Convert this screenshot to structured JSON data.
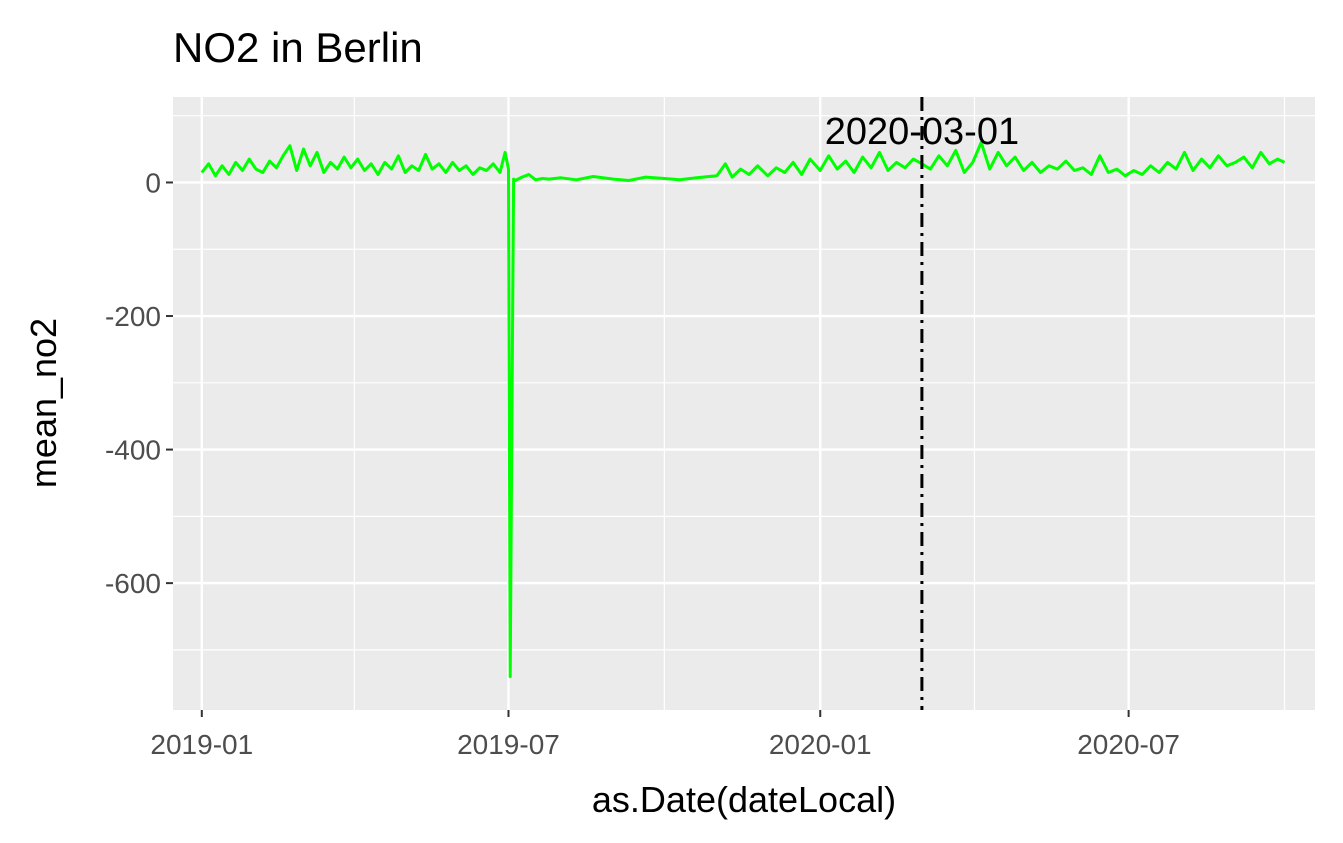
{
  "chart_data": {
    "type": "line",
    "title": "NO2 in Berlin",
    "xlabel": "as.Date(dateLocal)",
    "ylabel": "mean_no2",
    "x_range": [
      "2018-12-15",
      "2020-10-19"
    ],
    "ylim": [
      -790,
      128
    ],
    "x_ticks": [
      {
        "date": "2019-01-01",
        "label": "2019-01"
      },
      {
        "date": "2019-07-01",
        "label": "2019-07"
      },
      {
        "date": "2020-01-01",
        "label": "2020-01"
      },
      {
        "date": "2020-07-01",
        "label": "2020-07"
      }
    ],
    "x_minor_ticks": [
      "2019-04-01",
      "2019-10-01",
      "2020-04-01",
      "2020-10-01"
    ],
    "y_ticks": [
      {
        "value": 0,
        "label": "0"
      },
      {
        "value": -200,
        "label": "-200"
      },
      {
        "value": -400,
        "label": "-400"
      },
      {
        "value": -600,
        "label": "-600"
      }
    ],
    "y_minor_ticks": [
      100,
      -100,
      -300,
      -500,
      -700
    ],
    "grid": true,
    "legend": "none",
    "line_color": "#00ff00",
    "series": [
      {
        "x": [
          "2019-01-01",
          "2019-01-05",
          "2019-01-09",
          "2019-01-13",
          "2019-01-17",
          "2019-01-21",
          "2019-01-25",
          "2019-01-29",
          "2019-02-02",
          "2019-02-06",
          "2019-02-10",
          "2019-02-14",
          "2019-02-18",
          "2019-02-22",
          "2019-02-26",
          "2019-03-02",
          "2019-03-06",
          "2019-03-10",
          "2019-03-14",
          "2019-03-18",
          "2019-03-22",
          "2019-03-26",
          "2019-03-30",
          "2019-04-03",
          "2019-04-07",
          "2019-04-11",
          "2019-04-15",
          "2019-04-19",
          "2019-04-23",
          "2019-04-27",
          "2019-05-01",
          "2019-05-05",
          "2019-05-09",
          "2019-05-13",
          "2019-05-17",
          "2019-05-21",
          "2019-05-25",
          "2019-05-29",
          "2019-06-02",
          "2019-06-06",
          "2019-06-10",
          "2019-06-14",
          "2019-06-18",
          "2019-06-22",
          "2019-06-26",
          "2019-06-29",
          "2019-07-01",
          "2019-07-02",
          "2019-07-03",
          "2019-07-04",
          "2019-07-05",
          "2019-07-09",
          "2019-07-13",
          "2019-07-17",
          "2019-07-21",
          "2019-07-25",
          "2019-08-01",
          "2019-08-10",
          "2019-08-20",
          "2019-09-01",
          "2019-09-10",
          "2019-09-20",
          "2019-10-01",
          "2019-10-10",
          "2019-10-20",
          "2019-11-01",
          "2019-11-06",
          "2019-11-10",
          "2019-11-15",
          "2019-11-20",
          "2019-11-25",
          "2019-12-01",
          "2019-12-06",
          "2019-12-11",
          "2019-12-16",
          "2019-12-21",
          "2019-12-26",
          "2020-01-01",
          "2020-01-06",
          "2020-01-11",
          "2020-01-16",
          "2020-01-21",
          "2020-01-26",
          "2020-01-31",
          "2020-02-05",
          "2020-02-10",
          "2020-02-15",
          "2020-02-20",
          "2020-02-25",
          "2020-03-01",
          "2020-03-06",
          "2020-03-11",
          "2020-03-16",
          "2020-03-21",
          "2020-03-26",
          "2020-03-31",
          "2020-04-05",
          "2020-04-10",
          "2020-04-15",
          "2020-04-20",
          "2020-04-25",
          "2020-04-30",
          "2020-05-05",
          "2020-05-10",
          "2020-05-15",
          "2020-05-20",
          "2020-05-25",
          "2020-05-30",
          "2020-06-04",
          "2020-06-09",
          "2020-06-14",
          "2020-06-19",
          "2020-06-24",
          "2020-06-29",
          "2020-07-04",
          "2020-07-09",
          "2020-07-14",
          "2020-07-19",
          "2020-07-24",
          "2020-07-29",
          "2020-08-03",
          "2020-08-08",
          "2020-08-13",
          "2020-08-18",
          "2020-08-23",
          "2020-08-28",
          "2020-09-02",
          "2020-09-07",
          "2020-09-12",
          "2020-09-17",
          "2020-09-22",
          "2020-09-27",
          "2020-10-01"
        ],
        "y": [
          15,
          28,
          10,
          25,
          12,
          30,
          18,
          35,
          20,
          15,
          32,
          22,
          40,
          55,
          18,
          50,
          25,
          45,
          15,
          30,
          20,
          38,
          22,
          35,
          18,
          28,
          12,
          30,
          20,
          40,
          15,
          25,
          18,
          42,
          20,
          28,
          15,
          30,
          18,
          25,
          12,
          22,
          18,
          28,
          15,
          45,
          20,
          -740,
          -360,
          5,
          3,
          8,
          12,
          4,
          6,
          5,
          7,
          4,
          9,
          5,
          3,
          8,
          6,
          4,
          7,
          10,
          28,
          8,
          20,
          12,
          25,
          10,
          22,
          15,
          30,
          12,
          35,
          18,
          40,
          20,
          32,
          15,
          38,
          22,
          45,
          18,
          30,
          22,
          35,
          28,
          20,
          40,
          25,
          48,
          15,
          30,
          60,
          20,
          45,
          25,
          38,
          18,
          30,
          15,
          25,
          20,
          32,
          18,
          22,
          12,
          40,
          15,
          20,
          10,
          18,
          12,
          25,
          15,
          30,
          20,
          45,
          18,
          35,
          22,
          40,
          25,
          30,
          38,
          22,
          45,
          28,
          35,
          30
        ]
      }
    ],
    "vline": {
      "date": "2020-03-01",
      "label": "2020-03-01"
    }
  }
}
